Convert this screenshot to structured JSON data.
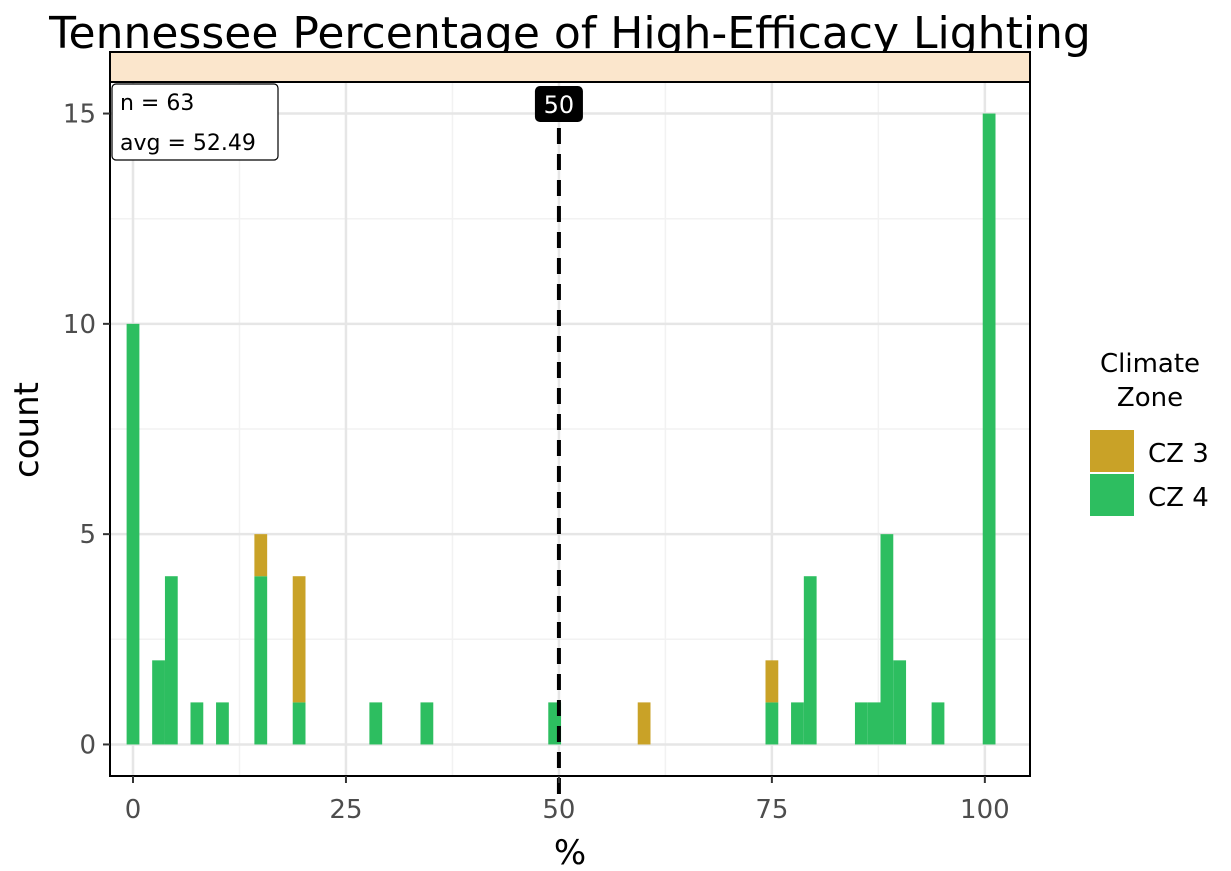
{
  "chart_data": {
    "type": "bar",
    "title": "Tennessee Percentage of High-Efficacy Lighting",
    "xlabel": "%",
    "ylabel": "count",
    "xlim": [
      -2.7,
      105.3
    ],
    "ylim": [
      -0.75,
      15.75
    ],
    "x_ticks": [
      0,
      25,
      50,
      75,
      100
    ],
    "y_ticks": [
      0,
      5,
      10,
      15
    ],
    "grid": true,
    "stacked": true,
    "bin_width": 1.5,
    "legend": {
      "title": "Climate Zone",
      "position": "right",
      "entries": [
        {
          "label": "CZ 3",
          "color": "#C9A227"
        },
        {
          "label": "CZ 4",
          "color": "#2DBE60"
        }
      ]
    },
    "series": [
      {
        "name": "CZ 3",
        "color": "#C9A227",
        "points": [
          {
            "x": 15,
            "y": 1
          },
          {
            "x": 19.5,
            "y": 3
          },
          {
            "x": 60,
            "y": 1
          },
          {
            "x": 75,
            "y": 1
          }
        ]
      },
      {
        "name": "CZ 4",
        "color": "#2DBE60",
        "points": [
          {
            "x": 0,
            "y": 10
          },
          {
            "x": 3,
            "y": 2
          },
          {
            "x": 4.5,
            "y": 4
          },
          {
            "x": 7.5,
            "y": 1
          },
          {
            "x": 10.5,
            "y": 1
          },
          {
            "x": 15,
            "y": 4
          },
          {
            "x": 19.5,
            "y": 1
          },
          {
            "x": 28.5,
            "y": 1
          },
          {
            "x": 34.5,
            "y": 1
          },
          {
            "x": 49.5,
            "y": 1
          },
          {
            "x": 75,
            "y": 1
          },
          {
            "x": 78,
            "y": 1
          },
          {
            "x": 79.5,
            "y": 4
          },
          {
            "x": 85.5,
            "y": 1
          },
          {
            "x": 87,
            "y": 1
          },
          {
            "x": 88.5,
            "y": 5
          },
          {
            "x": 90,
            "y": 2
          },
          {
            "x": 94.5,
            "y": 1
          },
          {
            "x": 100.5,
            "y": 15
          }
        ]
      }
    ],
    "reference_line": {
      "x": 50,
      "label": "50",
      "style": "dashed"
    },
    "annotation": {
      "lines": [
        "n = 63",
        "avg = 52.49"
      ],
      "position": "top-left"
    },
    "strip_color": "#FBE6CC"
  }
}
